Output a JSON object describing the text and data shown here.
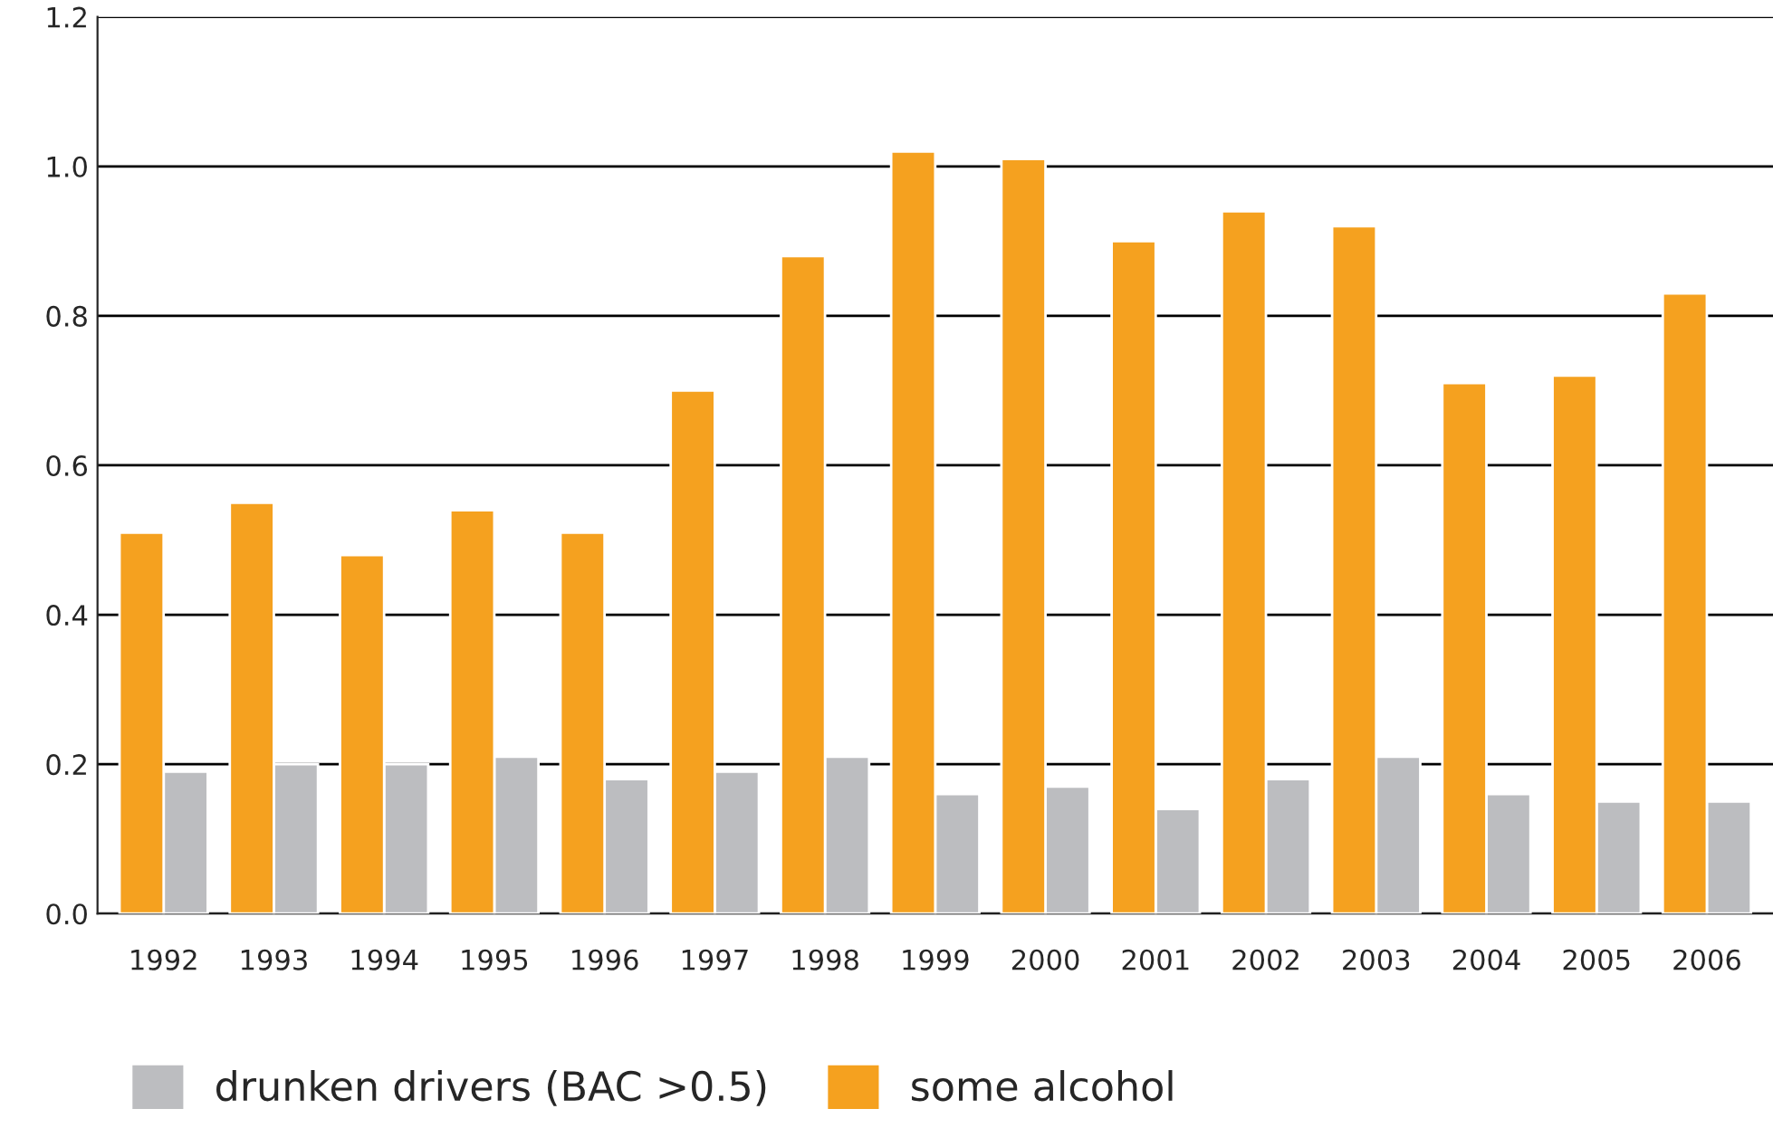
{
  "chart_data": {
    "type": "bar",
    "categories": [
      "1992",
      "1993",
      "1994",
      "1995",
      "1996",
      "1997",
      "1998",
      "1999",
      "2000",
      "2001",
      "2002",
      "2003",
      "2004",
      "2005",
      "2006"
    ],
    "series": [
      {
        "name": "drunken drivers (BAC >0.5)",
        "color": "#bcbdc0",
        "values": [
          0.19,
          0.2,
          0.2,
          0.21,
          0.18,
          0.19,
          0.21,
          0.16,
          0.17,
          0.14,
          0.18,
          0.21,
          0.16,
          0.15,
          0.15
        ]
      },
      {
        "name": "some alcohol",
        "color": "#f5a11f",
        "values": [
          0.51,
          0.55,
          0.48,
          0.54,
          0.51,
          0.7,
          0.88,
          1.02,
          1.01,
          0.9,
          0.94,
          0.92,
          0.71,
          0.72,
          0.83
        ]
      }
    ],
    "ylim": [
      0,
      1.2
    ],
    "yticks": [
      {
        "value": 0,
        "label": "0.0"
      },
      {
        "value": 0.2,
        "label": "0.2"
      },
      {
        "value": 0.4,
        "label": "0.4"
      },
      {
        "value": 0.6,
        "label": "0.6"
      },
      {
        "value": 0.8,
        "label": "0.8"
      },
      {
        "value": 1.0,
        "label": "1.0"
      },
      {
        "value": 1.2,
        "label": "1.2"
      }
    ],
    "grid": "y",
    "legend": "bottom left"
  }
}
